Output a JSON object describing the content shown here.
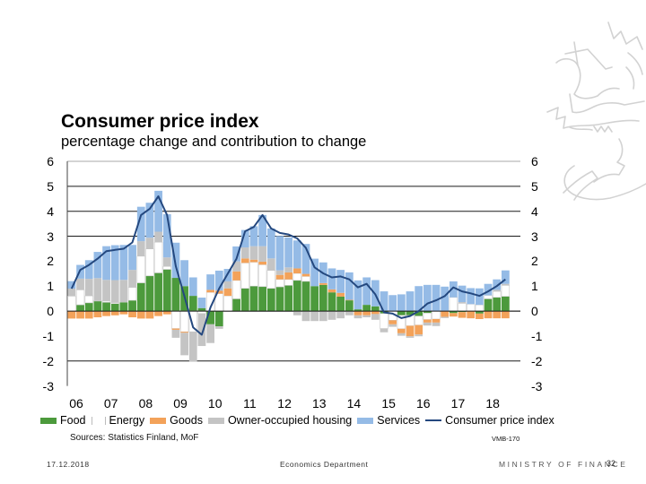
{
  "slide": {
    "footer": {
      "date": "17.12.2018",
      "department": "Economics Department",
      "organization": "MINISTRY OF FINANCE",
      "page_number": "32"
    },
    "logo": "finnish-lion-emblem"
  },
  "chart_data": {
    "type": "bar",
    "subtype": "stacked-bar-with-line",
    "title": "Consumer price index",
    "subtitle": "percentage change and contribution to change",
    "xlabel": "",
    "ylabel": "",
    "ylim": [
      -3,
      6
    ],
    "yticks": [
      "6",
      "5",
      "4",
      "3",
      "2",
      "1",
      "0",
      "-1",
      "-2",
      "-3"
    ],
    "ytick_values": [
      6,
      5,
      4,
      3,
      2,
      1,
      0,
      -1,
      -2,
      -3
    ],
    "gridlines": [
      5,
      4,
      3,
      0,
      -2
    ],
    "grid": true,
    "year_labels": [
      "06",
      "07",
      "08",
      "09",
      "10",
      "11",
      "12",
      "13",
      "14",
      "15",
      "16",
      "17",
      "18"
    ],
    "x": [
      "2006Q1",
      "2006Q2",
      "2006Q3",
      "2006Q4",
      "2007Q1",
      "2007Q2",
      "2007Q3",
      "2007Q4",
      "2008Q1",
      "2008Q2",
      "2008Q3",
      "2008Q4",
      "2009Q1",
      "2009Q2",
      "2009Q3",
      "2009Q4",
      "2010Q1",
      "2010Q2",
      "2010Q3",
      "2010Q4",
      "2011Q1",
      "2011Q2",
      "2011Q3",
      "2011Q4",
      "2012Q1",
      "2012Q2",
      "2012Q3",
      "2012Q4",
      "2013Q1",
      "2013Q2",
      "2013Q3",
      "2013Q4",
      "2014Q1",
      "2014Q2",
      "2014Q3",
      "2014Q4",
      "2015Q1",
      "2015Q2",
      "2015Q3",
      "2015Q4",
      "2016Q1",
      "2016Q2",
      "2016Q3",
      "2016Q4",
      "2017Q1",
      "2017Q2",
      "2017Q3",
      "2017Q4",
      "2018Q1",
      "2018Q2",
      "2018Q3"
    ],
    "series": [
      {
        "name": "Food",
        "type": "bar",
        "color": "#4c9a3c",
        "values": [
          0,
          0.25,
          0.33,
          0.4,
          0.35,
          0.3,
          0.35,
          0.43,
          1.13,
          1.41,
          1.53,
          1.67,
          1.33,
          1.0,
          0.61,
          0.12,
          -0.53,
          -0.61,
          0,
          0.49,
          0.91,
          1.0,
          0.98,
          0.91,
          0.97,
          1.03,
          1.23,
          1.19,
          1.0,
          1.05,
          0.75,
          0.58,
          0.43,
          0.07,
          0.25,
          0.19,
          -0.1,
          0,
          -0.17,
          -0.17,
          -0.2,
          -0.08,
          0,
          0,
          -0.08,
          -0.04,
          0,
          -0.1,
          0.49,
          0.55,
          0.59
        ]
      },
      {
        "name": "Energy",
        "type": "bar",
        "color": "#ffffff",
        "values": [
          0.6,
          0.6,
          0.28,
          0.02,
          0.05,
          0.04,
          0,
          0.52,
          1.07,
          1.08,
          1.23,
          0.12,
          -0.7,
          -0.83,
          -0.83,
          -0.1,
          0.75,
          0.7,
          0.61,
          0.74,
          1.02,
          0.96,
          0.88,
          0.72,
          0.3,
          0.24,
          0.28,
          0.2,
          0,
          0,
          0,
          0,
          0,
          0,
          0,
          0,
          -0.6,
          -0.37,
          -0.54,
          -0.42,
          -0.36,
          -0.26,
          -0.32,
          0,
          0.55,
          0.31,
          0.28,
          0.25,
          0.14,
          0.24,
          0.44
        ]
      },
      {
        "name": "Goods",
        "type": "bar",
        "color": "#f3a25a",
        "values": [
          -0.3,
          -0.3,
          -0.3,
          -0.25,
          -0.2,
          -0.17,
          -0.13,
          -0.25,
          -0.3,
          -0.3,
          -0.2,
          -0.13,
          -0.05,
          -0.04,
          0,
          0,
          0.1,
          0.12,
          0.3,
          0.36,
          0.18,
          0.1,
          0.12,
          0,
          0.18,
          0.28,
          0.2,
          0.1,
          0,
          0.07,
          0.12,
          0.15,
          0.02,
          -0.17,
          -0.17,
          -0.12,
          0,
          -0.16,
          -0.18,
          -0.42,
          -0.38,
          -0.12,
          -0.14,
          -0.23,
          -0.14,
          -0.23,
          -0.29,
          -0.22,
          -0.29,
          -0.29,
          -0.29
        ]
      },
      {
        "name": "Owner-occupied housing",
        "type": "bar",
        "color": "#c4c4c4",
        "values": [
          0.3,
          0.45,
          0.68,
          0.9,
          0.85,
          0.9,
          0.9,
          0.7,
          0.6,
          0.45,
          0.42,
          0.36,
          -0.32,
          -0.9,
          -1.2,
          -1.3,
          -0.75,
          -0.1,
          0.28,
          0.4,
          0.44,
          0.54,
          0.62,
          0.48,
          0.18,
          0.2,
          -0.17,
          -0.4,
          -0.4,
          -0.4,
          -0.35,
          -0.29,
          -0.17,
          -0.12,
          -0.08,
          -0.23,
          -0.15,
          -0.1,
          -0.1,
          -0.06,
          -0.07,
          -0.12,
          -0.14,
          -0.05,
          0,
          0.05,
          0,
          0,
          0,
          0.06,
          0.06
        ]
      },
      {
        "name": "Services",
        "type": "bar",
        "color": "#95bbe6",
        "values": [
          0.3,
          0.55,
          0.75,
          1.05,
          1.35,
          1.4,
          1.4,
          1.0,
          1.38,
          1.4,
          1.64,
          1.73,
          1.41,
          1.04,
          0.74,
          0.42,
          0.62,
          0.8,
          0.5,
          0.6,
          0.7,
          0.8,
          1.25,
          1.2,
          1.38,
          1.2,
          1.12,
          1.2,
          1.1,
          0.83,
          0.84,
          0.92,
          1.1,
          1.16,
          1.1,
          1.05,
          0.79,
          0.64,
          0.67,
          0.79,
          1.0,
          1.05,
          1.05,
          0.98,
          0.64,
          0.66,
          0.64,
          0.66,
          0.46,
          0.42,
          0.54
        ]
      },
      {
        "name": "Consumer price index",
        "type": "line",
        "color": "#24487f",
        "values": [
          0.9,
          1.65,
          1.85,
          2.1,
          2.4,
          2.45,
          2.5,
          2.75,
          3.85,
          4.1,
          4.6,
          3.85,
          1.8,
          0.6,
          -0.65,
          -0.95,
          0.15,
          0.9,
          1.5,
          2.1,
          3.2,
          3.37,
          3.85,
          3.31,
          3.13,
          3.07,
          2.91,
          2.53,
          1.75,
          1.51,
          1.35,
          1.39,
          1.27,
          0.95,
          1.09,
          0.67,
          -0.05,
          -0.1,
          -0.28,
          -0.2,
          0.0,
          0.3,
          0.43,
          0.6,
          0.95,
          0.79,
          0.71,
          0.61,
          0.79,
          1.0,
          1.27
        ]
      }
    ],
    "legend": {
      "position": "bottom"
    },
    "source": "Sources: Statistics Finland, MoF",
    "code": "VMB-170"
  }
}
